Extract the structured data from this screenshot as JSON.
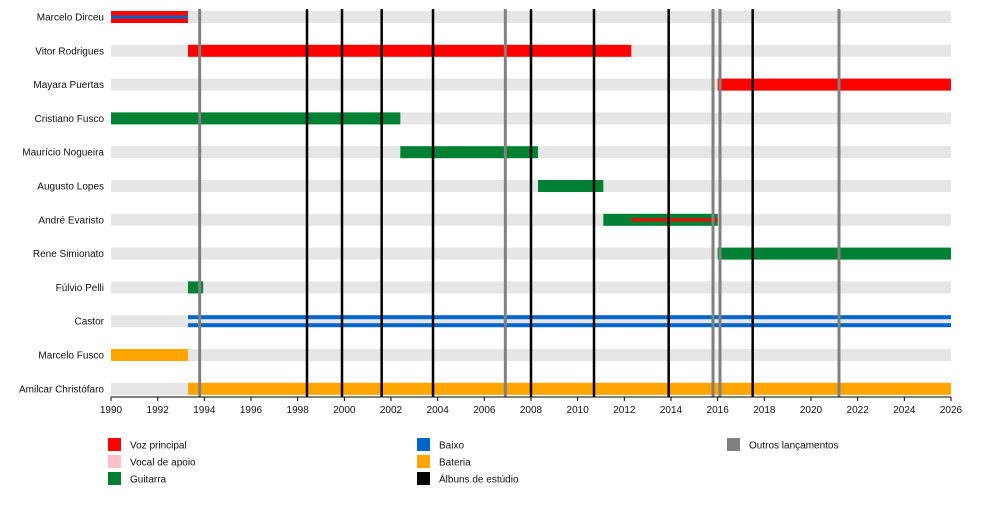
{
  "chart_data": {
    "type": "timeline",
    "x_range": [
      1990,
      2026
    ],
    "x_ticks": [
      "1990",
      "1992",
      "1994",
      "1996",
      "1998",
      "2000",
      "2002",
      "2004",
      "2006",
      "2008",
      "2010",
      "2012",
      "2014",
      "2016",
      "2018",
      "2020",
      "2022",
      "2024",
      "2026"
    ],
    "roles": [
      {
        "key": "voz",
        "label": "Voz principal",
        "color": "#ff0000"
      },
      {
        "key": "vocal",
        "label": "Vocal de apoio",
        "color": "#ffc0cb"
      },
      {
        "key": "guitarra",
        "label": "Guitarra",
        "color": "#008033"
      },
      {
        "key": "baixo",
        "label": "Baixo",
        "color": "#0066cc"
      },
      {
        "key": "bateria",
        "label": "Bateria",
        "color": "#ffa500"
      },
      {
        "key": "estudio",
        "label": "Álbuns de estúdio",
        "color": "#000000"
      },
      {
        "key": "outros",
        "label": "Outros lançamentos",
        "color": "#808080"
      }
    ],
    "members": [
      {
        "name": "Marcelo Dirceu",
        "periods": [
          {
            "role": "voz",
            "start": 1990.0,
            "end": 1993.3
          },
          {
            "role": "baixo",
            "start": 1990.0,
            "end": 1993.3,
            "style": "thin"
          }
        ]
      },
      {
        "name": "Vitor Rodrigues",
        "periods": [
          {
            "role": "voz",
            "start": 1993.3,
            "end": 2012.3
          }
        ]
      },
      {
        "name": "Mayara Puertas",
        "periods": [
          {
            "role": "voz",
            "start": 2016.0,
            "end": 2026.0
          }
        ]
      },
      {
        "name": "Cristiano Fusco",
        "periods": [
          {
            "role": "guitarra",
            "start": 1990.0,
            "end": 2002.4
          }
        ]
      },
      {
        "name": "Maurício Nogueira",
        "periods": [
          {
            "role": "guitarra",
            "start": 2002.4,
            "end": 2008.3
          }
        ]
      },
      {
        "name": "Augusto Lopes",
        "periods": [
          {
            "role": "guitarra",
            "start": 2008.3,
            "end": 2011.1
          }
        ]
      },
      {
        "name": "André Evaristo",
        "periods": [
          {
            "role": "guitarra",
            "start": 2011.1,
            "end": 2016.0
          },
          {
            "role": "voz",
            "start": 2012.3,
            "end": 2016.0,
            "style": "thin"
          }
        ]
      },
      {
        "name": "Rene Simionato",
        "periods": [
          {
            "role": "guitarra",
            "start": 2016.0,
            "end": 2026.0
          }
        ]
      },
      {
        "name": "Fúlvio Pelli",
        "periods": [
          {
            "role": "guitarra",
            "start": 1993.3,
            "end": 1993.95
          }
        ]
      },
      {
        "name": "Castor",
        "periods": [
          {
            "role": "baixo",
            "start": 1993.3,
            "end": 2026.0,
            "style": "double"
          }
        ]
      },
      {
        "name": "Marcelo Fusco",
        "periods": [
          {
            "role": "bateria",
            "start": 1990.0,
            "end": 1993.3
          }
        ]
      },
      {
        "name": "Amilcar Christófaro",
        "periods": [
          {
            "role": "bateria",
            "start": 1993.3,
            "end": 2026.0
          }
        ]
      }
    ],
    "studio_albums": [
      1998.4,
      1999.9,
      2001.6,
      2003.8,
      2008.0,
      2010.7,
      2013.9,
      2017.5
    ],
    "other_releases": [
      1993.8,
      2006.9,
      2015.8,
      2016.1,
      2021.2
    ],
    "legend_placement": "bottom"
  }
}
